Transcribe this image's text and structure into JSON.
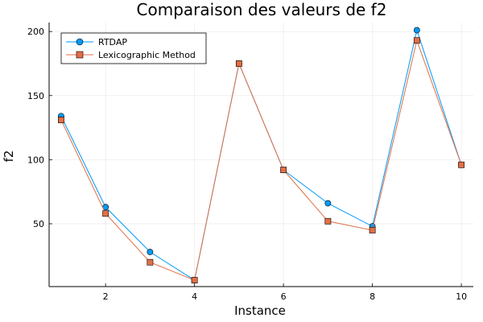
{
  "chart_data": {
    "type": "line",
    "title": "Comparaison des valeurs de f2",
    "xlabel": "Instance",
    "ylabel": "f2",
    "x": [
      1,
      2,
      3,
      4,
      5,
      6,
      7,
      8,
      9,
      10
    ],
    "xlim": [
      0.73,
      10.27
    ],
    "ylim": [
      1,
      207
    ],
    "xticks": [
      2,
      4,
      6,
      8,
      10
    ],
    "yticks": [
      50,
      100,
      150,
      200
    ],
    "grid": true,
    "legend_position": "top-left",
    "series": [
      {
        "name": "RTDAP",
        "marker": "circle",
        "color": "#009AF9",
        "values": [
          134,
          63,
          28,
          6,
          175,
          92,
          66,
          48,
          201,
          96
        ]
      },
      {
        "name": "Lexicographic Method",
        "marker": "square",
        "color": "#E26F46",
        "values": [
          131,
          58,
          20,
          6,
          175,
          92,
          52,
          45,
          193,
          96
        ]
      }
    ]
  }
}
